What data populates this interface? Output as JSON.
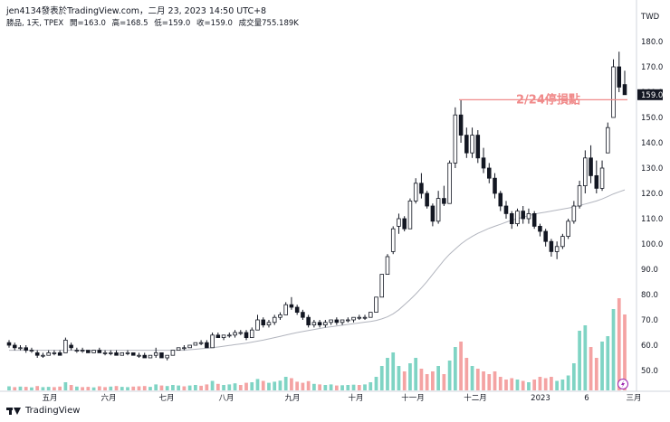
{
  "header": {
    "published": "jen4134發表於TradingView.com，二月 23, 2023 14:50 UTC+8",
    "symbol": "勝品, 1天, TPEX",
    "open": "開=163.0",
    "high": "高=168.5",
    "low": "低=159.0",
    "close": "收=159.0",
    "volume": "成交量755.189K"
  },
  "footer": {
    "brand": "TradingView"
  },
  "colors": {
    "up": "#ffffff",
    "down": "#131722",
    "ma": "#b2b5be",
    "annotation": "#f08a8a",
    "volume_up": "#7fd4c4",
    "volume_down": "#f4a3a3",
    "price_label": "#131722"
  },
  "chart_data": {
    "type": "candlestick",
    "currency": "TWD",
    "y_ticks": [
      "180.0",
      "170.0",
      "160.0",
      "150.0",
      "140.0",
      "130.0",
      "120.0",
      "110.0",
      "100.0",
      "90.0",
      "80.0",
      "70.0",
      "60.0",
      "50.0"
    ],
    "ylim": [
      45,
      184
    ],
    "x_ticks": [
      "五月",
      "六月",
      "七月",
      "八月",
      "九月",
      "十月",
      "十一月",
      "十二月",
      "2023",
      "6",
      "三月"
    ],
    "last_price_label": "159.0",
    "last_price": 159.0,
    "annotation": {
      "text": "2/24停損點",
      "price": 157
    },
    "candles": [
      {
        "o": 61,
        "h": 62,
        "l": 59,
        "c": 60
      },
      {
        "o": 60,
        "h": 61,
        "l": 58,
        "c": 59
      },
      {
        "o": 59,
        "h": 60,
        "l": 58,
        "c": 59
      },
      {
        "o": 59,
        "h": 60,
        "l": 57,
        "c": 58
      },
      {
        "o": 58,
        "h": 59,
        "l": 57,
        "c": 58
      },
      {
        "o": 57,
        "h": 58,
        "l": 55,
        "c": 56
      },
      {
        "o": 56,
        "h": 57,
        "l": 55,
        "c": 56
      },
      {
        "o": 56,
        "h": 58,
        "l": 56,
        "c": 57
      },
      {
        "o": 57,
        "h": 58,
        "l": 56,
        "c": 57
      },
      {
        "o": 57,
        "h": 58,
        "l": 56,
        "c": 56
      },
      {
        "o": 57,
        "h": 63,
        "l": 57,
        "c": 62
      },
      {
        "o": 60,
        "h": 61,
        "l": 58,
        "c": 59
      },
      {
        "o": 58,
        "h": 59,
        "l": 57,
        "c": 58
      },
      {
        "o": 58,
        "h": 59,
        "l": 57,
        "c": 58
      },
      {
        "o": 58,
        "h": 58,
        "l": 57,
        "c": 57
      },
      {
        "o": 57,
        "h": 58,
        "l": 57,
        "c": 58
      },
      {
        "o": 58,
        "h": 59,
        "l": 57,
        "c": 57
      },
      {
        "o": 57,
        "h": 58,
        "l": 56,
        "c": 57
      },
      {
        "o": 57,
        "h": 58,
        "l": 56,
        "c": 57
      },
      {
        "o": 57,
        "h": 58,
        "l": 56,
        "c": 56
      },
      {
        "o": 56,
        "h": 57,
        "l": 56,
        "c": 57
      },
      {
        "o": 57,
        "h": 58,
        "l": 56,
        "c": 57
      },
      {
        "o": 57,
        "h": 57,
        "l": 56,
        "c": 56
      },
      {
        "o": 56,
        "h": 57,
        "l": 55,
        "c": 56
      },
      {
        "o": 56,
        "h": 57,
        "l": 55,
        "c": 55
      },
      {
        "o": 55,
        "h": 56,
        "l": 55,
        "c": 56
      },
      {
        "o": 56,
        "h": 59,
        "l": 55,
        "c": 57
      },
      {
        "o": 57,
        "h": 57,
        "l": 55,
        "c": 55
      },
      {
        "o": 55,
        "h": 56,
        "l": 54,
        "c": 56
      },
      {
        "o": 56,
        "h": 58,
        "l": 56,
        "c": 58
      },
      {
        "o": 58,
        "h": 59,
        "l": 58,
        "c": 59
      },
      {
        "o": 59,
        "h": 60,
        "l": 58,
        "c": 59
      },
      {
        "o": 59,
        "h": 60,
        "l": 59,
        "c": 60
      },
      {
        "o": 60,
        "h": 61,
        "l": 60,
        "c": 61
      },
      {
        "o": 61,
        "h": 62,
        "l": 60,
        "c": 61
      },
      {
        "o": 61,
        "h": 62,
        "l": 59,
        "c": 59
      },
      {
        "o": 59,
        "h": 65,
        "l": 59,
        "c": 64
      },
      {
        "o": 64,
        "h": 65,
        "l": 63,
        "c": 63
      },
      {
        "o": 63,
        "h": 64,
        "l": 62,
        "c": 64
      },
      {
        "o": 64,
        "h": 65,
        "l": 63,
        "c": 64
      },
      {
        "o": 64,
        "h": 66,
        "l": 63,
        "c": 65
      },
      {
        "o": 65,
        "h": 66,
        "l": 64,
        "c": 65
      },
      {
        "o": 65,
        "h": 66,
        "l": 62,
        "c": 63
      },
      {
        "o": 63,
        "h": 67,
        "l": 63,
        "c": 66
      },
      {
        "o": 66,
        "h": 72,
        "l": 66,
        "c": 70
      },
      {
        "o": 70,
        "h": 71,
        "l": 67,
        "c": 68
      },
      {
        "o": 68,
        "h": 70,
        "l": 67,
        "c": 69
      },
      {
        "o": 69,
        "h": 72,
        "l": 68,
        "c": 71
      },
      {
        "o": 71,
        "h": 73,
        "l": 70,
        "c": 72
      },
      {
        "o": 72,
        "h": 77,
        "l": 72,
        "c": 76
      },
      {
        "o": 76,
        "h": 79,
        "l": 74,
        "c": 75
      },
      {
        "o": 75,
        "h": 76,
        "l": 72,
        "c": 73
      },
      {
        "o": 73,
        "h": 74,
        "l": 70,
        "c": 71
      },
      {
        "o": 71,
        "h": 72,
        "l": 67,
        "c": 68
      },
      {
        "o": 68,
        "h": 70,
        "l": 67,
        "c": 69
      },
      {
        "o": 69,
        "h": 70,
        "l": 67,
        "c": 68
      },
      {
        "o": 68,
        "h": 70,
        "l": 67,
        "c": 69
      },
      {
        "o": 69,
        "h": 70,
        "l": 68,
        "c": 70
      },
      {
        "o": 70,
        "h": 71,
        "l": 68,
        "c": 69
      },
      {
        "o": 69,
        "h": 70,
        "l": 68,
        "c": 70
      },
      {
        "o": 70,
        "h": 71,
        "l": 69,
        "c": 70
      },
      {
        "o": 70,
        "h": 71,
        "l": 69,
        "c": 71
      },
      {
        "o": 71,
        "h": 72,
        "l": 70,
        "c": 71
      },
      {
        "o": 71,
        "h": 72,
        "l": 70,
        "c": 71
      },
      {
        "o": 71,
        "h": 73,
        "l": 71,
        "c": 73
      },
      {
        "o": 73,
        "h": 79,
        "l": 73,
        "c": 79
      },
      {
        "o": 79,
        "h": 88,
        "l": 79,
        "c": 88
      },
      {
        "o": 88,
        "h": 96,
        "l": 88,
        "c": 95
      },
      {
        "o": 97,
        "h": 107,
        "l": 96,
        "c": 106
      },
      {
        "o": 107,
        "h": 112,
        "l": 104,
        "c": 110
      },
      {
        "o": 110,
        "h": 111,
        "l": 105,
        "c": 106
      },
      {
        "o": 106,
        "h": 118,
        "l": 106,
        "c": 117
      },
      {
        "o": 117,
        "h": 126,
        "l": 116,
        "c": 124
      },
      {
        "o": 124,
        "h": 128,
        "l": 118,
        "c": 120
      },
      {
        "o": 120,
        "h": 121,
        "l": 114,
        "c": 115
      },
      {
        "o": 115,
        "h": 116,
        "l": 107,
        "c": 109
      },
      {
        "o": 109,
        "h": 121,
        "l": 108,
        "c": 118
      },
      {
        "o": 118,
        "h": 123,
        "l": 115,
        "c": 116
      },
      {
        "o": 116,
        "h": 133,
        "l": 116,
        "c": 132
      },
      {
        "o": 132,
        "h": 154,
        "l": 130,
        "c": 151
      },
      {
        "o": 151,
        "h": 157,
        "l": 140,
        "c": 143
      },
      {
        "o": 143,
        "h": 146,
        "l": 134,
        "c": 136
      },
      {
        "o": 136,
        "h": 146,
        "l": 134,
        "c": 143
      },
      {
        "o": 143,
        "h": 145,
        "l": 132,
        "c": 134
      },
      {
        "o": 134,
        "h": 138,
        "l": 128,
        "c": 130
      },
      {
        "o": 130,
        "h": 132,
        "l": 124,
        "c": 126
      },
      {
        "o": 126,
        "h": 128,
        "l": 118,
        "c": 120
      },
      {
        "o": 120,
        "h": 121,
        "l": 113,
        "c": 115
      },
      {
        "o": 115,
        "h": 117,
        "l": 110,
        "c": 112
      },
      {
        "o": 112,
        "h": 113,
        "l": 106,
        "c": 108
      },
      {
        "o": 108,
        "h": 114,
        "l": 107,
        "c": 113
      },
      {
        "o": 113,
        "h": 115,
        "l": 108,
        "c": 110
      },
      {
        "o": 110,
        "h": 114,
        "l": 108,
        "c": 112
      },
      {
        "o": 112,
        "h": 113,
        "l": 106,
        "c": 107
      },
      {
        "o": 107,
        "h": 108,
        "l": 103,
        "c": 105
      },
      {
        "o": 105,
        "h": 106,
        "l": 99,
        "c": 101
      },
      {
        "o": 101,
        "h": 102,
        "l": 95,
        "c": 97
      },
      {
        "o": 97,
        "h": 101,
        "l": 94,
        "c": 99
      },
      {
        "o": 99,
        "h": 104,
        "l": 98,
        "c": 103
      },
      {
        "o": 103,
        "h": 110,
        "l": 102,
        "c": 109
      },
      {
        "o": 109,
        "h": 117,
        "l": 108,
        "c": 115
      },
      {
        "o": 115,
        "h": 125,
        "l": 114,
        "c": 123
      },
      {
        "o": 123,
        "h": 137,
        "l": 120,
        "c": 134
      },
      {
        "o": 134,
        "h": 139,
        "l": 124,
        "c": 127
      },
      {
        "o": 127,
        "h": 133,
        "l": 120,
        "c": 122
      },
      {
        "o": 122,
        "h": 133,
        "l": 121,
        "c": 130
      },
      {
        "o": 136,
        "h": 148,
        "l": 136,
        "c": 146
      },
      {
        "o": 150,
        "h": 173,
        "l": 150,
        "c": 170
      },
      {
        "o": 170,
        "h": 176,
        "l": 160,
        "c": 162
      },
      {
        "o": 163,
        "h": 168.5,
        "l": 159,
        "c": 159
      }
    ],
    "volume_ticks_note": "",
    "volumes": [
      {
        "v": 1.5,
        "up": true
      },
      {
        "v": 1.2,
        "up": false
      },
      {
        "v": 1.4,
        "up": true
      },
      {
        "v": 1.3,
        "up": false
      },
      {
        "v": 1.1,
        "up": true
      },
      {
        "v": 1.6,
        "up": false
      },
      {
        "v": 1.2,
        "up": true
      },
      {
        "v": 1.3,
        "up": true
      },
      {
        "v": 1.2,
        "up": false
      },
      {
        "v": 1.4,
        "up": false
      },
      {
        "v": 3.0,
        "up": true
      },
      {
        "v": 2.0,
        "up": false
      },
      {
        "v": 1.4,
        "up": true
      },
      {
        "v": 1.2,
        "up": false
      },
      {
        "v": 1.3,
        "up": false
      },
      {
        "v": 1.1,
        "up": true
      },
      {
        "v": 1.5,
        "up": false
      },
      {
        "v": 1.2,
        "up": false
      },
      {
        "v": 1.4,
        "up": true
      },
      {
        "v": 1.6,
        "up": false
      },
      {
        "v": 1.3,
        "up": true
      },
      {
        "v": 1.2,
        "up": true
      },
      {
        "v": 1.4,
        "up": false
      },
      {
        "v": 1.5,
        "up": false
      },
      {
        "v": 1.6,
        "up": false
      },
      {
        "v": 1.3,
        "up": true
      },
      {
        "v": 2.2,
        "up": true
      },
      {
        "v": 1.8,
        "up": false
      },
      {
        "v": 1.6,
        "up": true
      },
      {
        "v": 2.0,
        "up": true
      },
      {
        "v": 1.8,
        "up": true
      },
      {
        "v": 1.5,
        "up": false
      },
      {
        "v": 1.8,
        "up": true
      },
      {
        "v": 2.0,
        "up": true
      },
      {
        "v": 1.7,
        "up": false
      },
      {
        "v": 2.2,
        "up": false
      },
      {
        "v": 3.5,
        "up": true
      },
      {
        "v": 2.4,
        "up": false
      },
      {
        "v": 2.0,
        "up": true
      },
      {
        "v": 2.2,
        "up": true
      },
      {
        "v": 2.6,
        "up": true
      },
      {
        "v": 2.0,
        "up": false
      },
      {
        "v": 2.8,
        "up": false
      },
      {
        "v": 3.0,
        "up": true
      },
      {
        "v": 4.2,
        "up": true
      },
      {
        "v": 3.5,
        "up": false
      },
      {
        "v": 2.8,
        "up": true
      },
      {
        "v": 3.2,
        "up": true
      },
      {
        "v": 3.6,
        "up": true
      },
      {
        "v": 5.0,
        "up": true
      },
      {
        "v": 4.5,
        "up": false
      },
      {
        "v": 3.2,
        "up": false
      },
      {
        "v": 2.8,
        "up": false
      },
      {
        "v": 3.4,
        "up": false
      },
      {
        "v": 2.4,
        "up": true
      },
      {
        "v": 2.2,
        "up": false
      },
      {
        "v": 2.0,
        "up": true
      },
      {
        "v": 2.2,
        "up": true
      },
      {
        "v": 1.8,
        "up": false
      },
      {
        "v": 1.9,
        "up": true
      },
      {
        "v": 2.0,
        "up": true
      },
      {
        "v": 2.1,
        "up": true
      },
      {
        "v": 2.0,
        "up": false
      },
      {
        "v": 2.2,
        "up": true
      },
      {
        "v": 3.0,
        "up": true
      },
      {
        "v": 5.0,
        "up": true
      },
      {
        "v": 9.0,
        "up": true
      },
      {
        "v": 12.0,
        "up": true
      },
      {
        "v": 14.0,
        "up": true
      },
      {
        "v": 9.0,
        "up": true
      },
      {
        "v": 7.0,
        "up": false
      },
      {
        "v": 10.0,
        "up": true
      },
      {
        "v": 12.0,
        "up": true
      },
      {
        "v": 8.0,
        "up": false
      },
      {
        "v": 6.0,
        "up": false
      },
      {
        "v": 7.0,
        "up": false
      },
      {
        "v": 9.0,
        "up": true
      },
      {
        "v": 6.0,
        "up": false
      },
      {
        "v": 11.0,
        "up": true
      },
      {
        "v": 16.0,
        "up": true
      },
      {
        "v": 18.0,
        "up": false
      },
      {
        "v": 12.0,
        "up": false
      },
      {
        "v": 9.0,
        "up": true
      },
      {
        "v": 8.0,
        "up": false
      },
      {
        "v": 7.0,
        "up": false
      },
      {
        "v": 6.0,
        "up": false
      },
      {
        "v": 7.0,
        "up": false
      },
      {
        "v": 5.0,
        "up": false
      },
      {
        "v": 4.0,
        "up": false
      },
      {
        "v": 4.5,
        "up": false
      },
      {
        "v": 4.0,
        "up": true
      },
      {
        "v": 3.5,
        "up": false
      },
      {
        "v": 3.0,
        "up": true
      },
      {
        "v": 4.0,
        "up": false
      },
      {
        "v": 5.0,
        "up": false
      },
      {
        "v": 4.5,
        "up": false
      },
      {
        "v": 5.0,
        "up": false
      },
      {
        "v": 3.5,
        "up": true
      },
      {
        "v": 4.0,
        "up": true
      },
      {
        "v": 5.5,
        "up": true
      },
      {
        "v": 10.0,
        "up": true
      },
      {
        "v": 22.0,
        "up": true
      },
      {
        "v": 24.0,
        "up": true
      },
      {
        "v": 16.0,
        "up": false
      },
      {
        "v": 12.0,
        "up": false
      },
      {
        "v": 18.0,
        "up": true
      },
      {
        "v": 20.0,
        "up": true
      },
      {
        "v": 30.0,
        "up": true
      },
      {
        "v": 34.0,
        "up": false
      },
      {
        "v": 28.0,
        "up": false
      }
    ],
    "ma_values": [
      58,
      58,
      58,
      58,
      58,
      58,
      58,
      58,
      58,
      58,
      58,
      58,
      58,
      58,
      58,
      58,
      58,
      58,
      58,
      58,
      58,
      58,
      58,
      58,
      58,
      58,
      58,
      58,
      58,
      58,
      58,
      58,
      58.2,
      58.4,
      58.6,
      58.8,
      59,
      59.3,
      59.6,
      59.9,
      60.2,
      60.5,
      60.8,
      61.2,
      61.6,
      62,
      62.5,
      63,
      63.5,
      64,
      64.5,
      65,
      65.4,
      65.8,
      66.2,
      66.6,
      67,
      67.3,
      67.6,
      67.9,
      68.2,
      68.5,
      68.8,
      69.1,
      69.4,
      69.8,
      70.4,
      71.2,
      72.4,
      74,
      76,
      78,
      80.2,
      82.6,
      85.2,
      88,
      90.8,
      93.6,
      96,
      98,
      100,
      101.6,
      103,
      104.2,
      105.2,
      106.2,
      107,
      107.8,
      108.6,
      109.4,
      110,
      110.6,
      111.2,
      111.8,
      112.2,
      112.6,
      113,
      113.4,
      113.8,
      114.2,
      114.6,
      115.2,
      115.8,
      116.4,
      117,
      117.8,
      118.8,
      119.8,
      120.6,
      121.4
    ]
  }
}
